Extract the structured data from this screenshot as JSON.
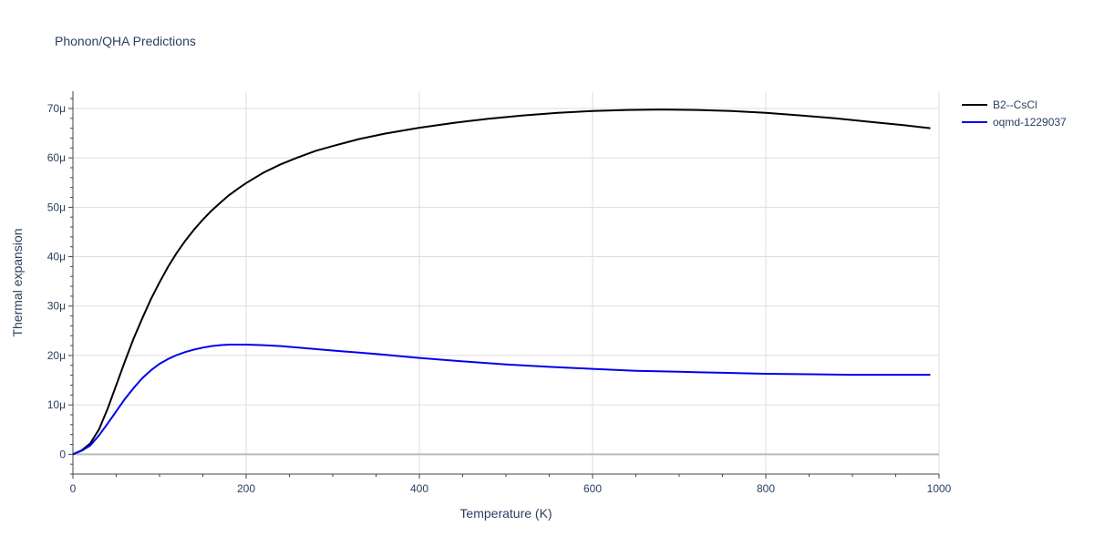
{
  "chart_data": {
    "type": "line",
    "title": "Phonon/QHA Predictions",
    "xlabel": "Temperature (K)",
    "ylabel": "Thermal expansion",
    "xlim": [
      0,
      1000
    ],
    "ylim": [
      -4,
      73.5
    ],
    "x_ticks": [
      0,
      200,
      400,
      600,
      800,
      1000
    ],
    "x_tick_labels": [
      "0",
      "200",
      "400",
      "600",
      "800",
      "1000"
    ],
    "y_ticks": [
      0,
      10,
      20,
      30,
      40,
      50,
      60,
      70
    ],
    "y_tick_labels": [
      "0",
      "10μ",
      "20μ",
      "30μ",
      "40μ",
      "50μ",
      "60μ",
      "70μ"
    ],
    "grid": true,
    "legend_position": "top-right",
    "series": [
      {
        "name": "B2--CsCl",
        "color": "#000000",
        "x": [
          0,
          10,
          20,
          30,
          40,
          50,
          60,
          70,
          80,
          90,
          100,
          110,
          120,
          130,
          140,
          150,
          160,
          170,
          180,
          190,
          200,
          220,
          240,
          260,
          280,
          300,
          330,
          360,
          400,
          440,
          480,
          520,
          560,
          600,
          640,
          680,
          720,
          760,
          800,
          840,
          880,
          920,
          960,
          990
        ],
        "y": [
          0,
          0.8,
          2.2,
          5,
          9.2,
          14,
          18.8,
          23.4,
          27.5,
          31.4,
          34.8,
          38,
          40.8,
          43.3,
          45.5,
          47.5,
          49.3,
          50.9,
          52.4,
          53.7,
          54.9,
          57,
          58.7,
          60.1,
          61.4,
          62.4,
          63.8,
          64.9,
          66.1,
          67.1,
          67.9,
          68.6,
          69.1,
          69.5,
          69.7,
          69.8,
          69.7,
          69.5,
          69.1,
          68.6,
          68,
          67.3,
          66.6,
          66
        ]
      },
      {
        "name": "oqmd-1229037",
        "color": "#0000ee",
        "x": [
          0,
          10,
          20,
          30,
          40,
          50,
          60,
          70,
          80,
          90,
          100,
          110,
          120,
          130,
          140,
          150,
          160,
          170,
          180,
          190,
          200,
          220,
          240,
          260,
          280,
          300,
          350,
          400,
          450,
          500,
          550,
          600,
          650,
          700,
          750,
          800,
          850,
          900,
          950,
          990
        ],
        "y": [
          0,
          0.7,
          1.8,
          3.8,
          6.2,
          8.7,
          11.2,
          13.4,
          15.4,
          17,
          18.3,
          19.3,
          20.1,
          20.7,
          21.2,
          21.6,
          21.9,
          22.1,
          22.2,
          22.2,
          22.2,
          22.1,
          21.9,
          21.6,
          21.3,
          21,
          20.3,
          19.5,
          18.8,
          18.2,
          17.7,
          17.3,
          16.9,
          16.7,
          16.5,
          16.3,
          16.2,
          16.1,
          16.1,
          16.1
        ]
      }
    ]
  }
}
